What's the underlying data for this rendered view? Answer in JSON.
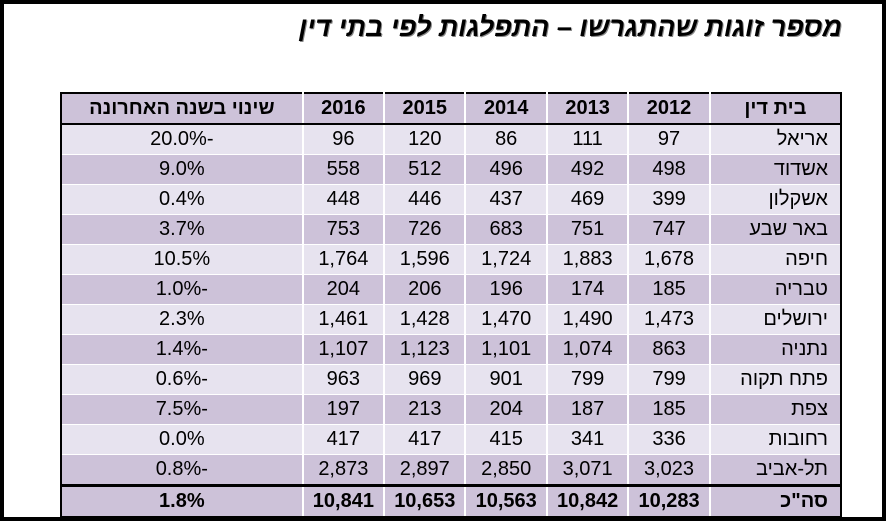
{
  "title": "מספר זוגות שהתגרשו – התפלגות לפי בתי דין",
  "table": {
    "headers": [
      "בית דין",
      "2012",
      "2013",
      "2014",
      "2015",
      "2016",
      "שינוי בשנה האחרונה"
    ],
    "rows": [
      [
        "אריאל",
        "97",
        "111",
        "86",
        "120",
        "96",
        "-20.0%"
      ],
      [
        "אשדוד",
        "498",
        "492",
        "496",
        "512",
        "558",
        "9.0%"
      ],
      [
        "אשקלון",
        "399",
        "469",
        "437",
        "446",
        "448",
        "0.4%"
      ],
      [
        "באר שבע",
        "747",
        "751",
        "683",
        "726",
        "753",
        "3.7%"
      ],
      [
        "חיפה",
        "1,678",
        "1,883",
        "1,724",
        "1,596",
        "1,764",
        "10.5%"
      ],
      [
        "טבריה",
        "185",
        "174",
        "196",
        "206",
        "204",
        "-1.0%"
      ],
      [
        "ירושלים",
        "1,473",
        "1,490",
        "1,470",
        "1,428",
        "1,461",
        "2.3%"
      ],
      [
        "נתניה",
        "863",
        "1,074",
        "1,101",
        "1,123",
        "1,107",
        "-1.4%"
      ],
      [
        "פתח תקוה",
        "799",
        "799",
        "901",
        "969",
        "963",
        "-0.6%"
      ],
      [
        "צפת",
        "185",
        "187",
        "204",
        "213",
        "197",
        "-7.5%"
      ],
      [
        "רחובות",
        "336",
        "341",
        "415",
        "417",
        "417",
        "0.0%"
      ],
      [
        "תל-אביב",
        "3,023",
        "3,071",
        "2,850",
        "2,897",
        "2,873",
        "-0.8%"
      ]
    ],
    "total": [
      "סה\"כ",
      "10,283",
      "10,842",
      "10,563",
      "10,653",
      "10,841",
      "1.8%"
    ]
  },
  "colors": {
    "header": "#cdc2d9",
    "row_light": "#e7e3ef",
    "row_dark": "#cdc2d9"
  }
}
